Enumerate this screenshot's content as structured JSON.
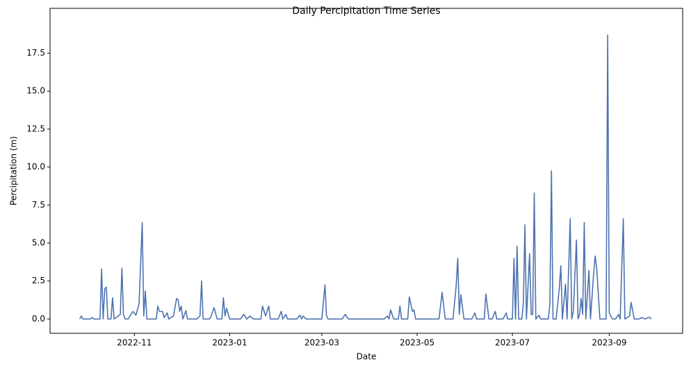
{
  "chart_data": {
    "type": "line",
    "title": "Daily Percipitation Time Series",
    "x_label": "Date",
    "y_label": "Percipitation (m)",
    "color": "#4c72b0",
    "x": [
      "2022-09-27",
      "2022-09-28",
      "2022-09-29",
      "2022-10-04",
      "2022-10-05",
      "2022-10-06",
      "2022-10-10",
      "2022-10-11",
      "2022-10-12",
      "2022-10-13",
      "2022-10-14",
      "2022-10-15",
      "2022-10-17",
      "2022-10-18",
      "2022-10-19",
      "2022-10-23",
      "2022-10-24",
      "2022-10-25",
      "2022-10-26",
      "2022-10-28",
      "2022-10-31",
      "2022-11-02",
      "2022-11-04",
      "2022-11-06",
      "2022-11-07",
      "2022-11-08",
      "2022-11-09",
      "2022-11-15",
      "2022-11-16",
      "2022-11-17",
      "2022-11-19",
      "2022-11-20",
      "2022-11-22",
      "2022-11-23",
      "2022-11-26",
      "2022-11-28",
      "2022-11-29",
      "2022-11-30",
      "2022-12-01",
      "2022-12-02",
      "2022-12-04",
      "2022-12-05",
      "2022-12-11",
      "2022-12-13",
      "2022-12-14",
      "2022-12-15",
      "2022-12-19",
      "2022-12-20",
      "2022-12-22",
      "2022-12-24",
      "2022-12-27",
      "2022-12-28",
      "2022-12-29",
      "2022-12-30",
      "2023-01-01",
      "2023-01-08",
      "2023-01-10",
      "2023-01-12",
      "2023-01-14",
      "2023-01-16",
      "2023-01-21",
      "2023-01-22",
      "2023-01-24",
      "2023-01-26",
      "2023-01-27",
      "2023-02-01",
      "2023-02-03",
      "2023-02-04",
      "2023-02-06",
      "2023-02-07",
      "2023-02-13",
      "2023-02-15",
      "2023-02-16",
      "2023-02-17",
      "2023-02-19",
      "2023-03-01",
      "2023-03-03",
      "2023-03-04",
      "2023-03-05",
      "2023-03-14",
      "2023-03-16",
      "2023-03-18",
      "2023-04-10",
      "2023-04-12",
      "2023-04-13",
      "2023-04-14",
      "2023-04-16",
      "2023-04-19",
      "2023-04-20",
      "2023-04-21",
      "2023-04-25",
      "2023-04-26",
      "2023-04-28",
      "2023-04-29",
      "2023-04-30",
      "2023-05-15",
      "2023-05-17",
      "2023-05-19",
      "2023-05-24",
      "2023-05-26",
      "2023-05-27",
      "2023-05-28",
      "2023-05-29",
      "2023-05-31",
      "2023-06-05",
      "2023-06-07",
      "2023-06-08",
      "2023-06-13",
      "2023-06-14",
      "2023-06-16",
      "2023-06-18",
      "2023-06-20",
      "2023-06-21",
      "2023-06-25",
      "2023-06-27",
      "2023-06-28",
      "2023-07-01",
      "2023-07-02",
      "2023-07-03",
      "2023-07-04",
      "2023-07-05",
      "2023-07-07",
      "2023-07-08",
      "2023-07-09",
      "2023-07-10",
      "2023-07-12",
      "2023-07-13",
      "2023-07-14",
      "2023-07-15",
      "2023-07-16",
      "2023-07-18",
      "2023-07-19",
      "2023-07-24",
      "2023-07-25",
      "2023-07-26",
      "2023-07-27",
      "2023-07-29",
      "2023-07-31",
      "2023-08-01",
      "2023-08-02",
      "2023-08-04",
      "2023-08-05",
      "2023-08-07",
      "2023-08-08",
      "2023-08-09",
      "2023-08-11",
      "2023-08-12",
      "2023-08-13",
      "2023-08-14",
      "2023-08-15",
      "2023-08-16",
      "2023-08-17",
      "2023-08-19",
      "2023-08-20",
      "2023-08-22",
      "2023-08-23",
      "2023-08-24",
      "2023-08-26",
      "2023-08-30",
      "2023-08-31",
      "2023-09-01",
      "2023-09-03",
      "2023-09-05",
      "2023-09-07",
      "2023-09-08",
      "2023-09-10",
      "2023-09-11",
      "2023-09-14",
      "2023-09-15",
      "2023-09-17",
      "2023-09-20",
      "2023-09-22",
      "2023-09-24",
      "2023-09-26",
      "2023-09-27",
      "2023-09-28"
    ],
    "values": [
      0,
      0.2,
      0,
      0,
      0.1,
      0,
      0,
      3.3,
      0,
      2.0,
      2.1,
      0,
      0,
      1.4,
      0,
      0.3,
      3.35,
      0.3,
      0,
      0,
      0.5,
      0.25,
      1.0,
      6.35,
      0.2,
      1.85,
      0,
      0,
      0.85,
      0.5,
      0.5,
      0.1,
      0.4,
      0,
      0.2,
      1.35,
      1.25,
      0.5,
      0.85,
      0,
      0.55,
      0,
      0,
      0.2,
      2.5,
      0,
      0,
      0.15,
      0.75,
      0,
      0,
      1.4,
      0.2,
      0.7,
      0,
      0,
      0.3,
      0,
      0.2,
      0,
      0,
      0.85,
      0.2,
      0.85,
      0,
      0,
      0.5,
      0,
      0.3,
      0,
      0,
      0.25,
      0,
      0.2,
      0,
      0,
      2.25,
      0.2,
      0,
      0,
      0.3,
      0,
      0,
      0.2,
      0,
      0.6,
      0,
      0,
      0.85,
      0,
      0,
      1.45,
      0.5,
      0.6,
      0,
      0,
      1.75,
      0,
      0,
      2.2,
      4.0,
      0.3,
      1.6,
      0,
      0,
      0.4,
      0,
      0,
      1.65,
      0,
      0,
      0.5,
      0,
      0,
      0.4,
      0,
      0,
      4.0,
      0,
      4.8,
      0,
      0,
      1.0,
      6.2,
      0,
      4.3,
      0.3,
      0.3,
      8.3,
      0,
      0.25,
      0,
      0,
      1.0,
      9.75,
      0,
      0,
      2.0,
      3.5,
      0,
      2.3,
      0,
      6.6,
      0,
      0.5,
      5.2,
      0,
      0.3,
      1.35,
      0.3,
      6.35,
      0,
      3.2,
      0,
      3.0,
      4.15,
      3.3,
      0,
      0,
      18.7,
      0.4,
      0,
      0,
      0.3,
      0,
      6.6,
      0,
      0.2,
      1.1,
      0,
      0,
      0.1,
      0,
      0.1,
      0.1,
      0
    ],
    "xlim": [
      "2022-09-08",
      "2023-10-18"
    ],
    "xticks": [
      {
        "value": "2022-11-01",
        "label": "2022-11"
      },
      {
        "value": "2023-01-01",
        "label": "2023-01"
      },
      {
        "value": "2023-03-01",
        "label": "2023-03"
      },
      {
        "value": "2023-05-01",
        "label": "2023-05"
      },
      {
        "value": "2023-07-01",
        "label": "2023-07"
      },
      {
        "value": "2023-09-01",
        "label": "2023-09"
      }
    ],
    "ylim": [
      -0.94,
      20.45
    ],
    "yticks": [
      {
        "value": 0,
        "label": "0.0"
      },
      {
        "value": 2.5,
        "label": "2.5"
      },
      {
        "value": 5,
        "label": "5.0"
      },
      {
        "value": 7.5,
        "label": "7.5"
      },
      {
        "value": 10,
        "label": "10.0"
      },
      {
        "value": 12.5,
        "label": "12.5"
      },
      {
        "value": 15,
        "label": "15.0"
      },
      {
        "value": 17.5,
        "label": "17.5"
      }
    ],
    "grid": false
  }
}
